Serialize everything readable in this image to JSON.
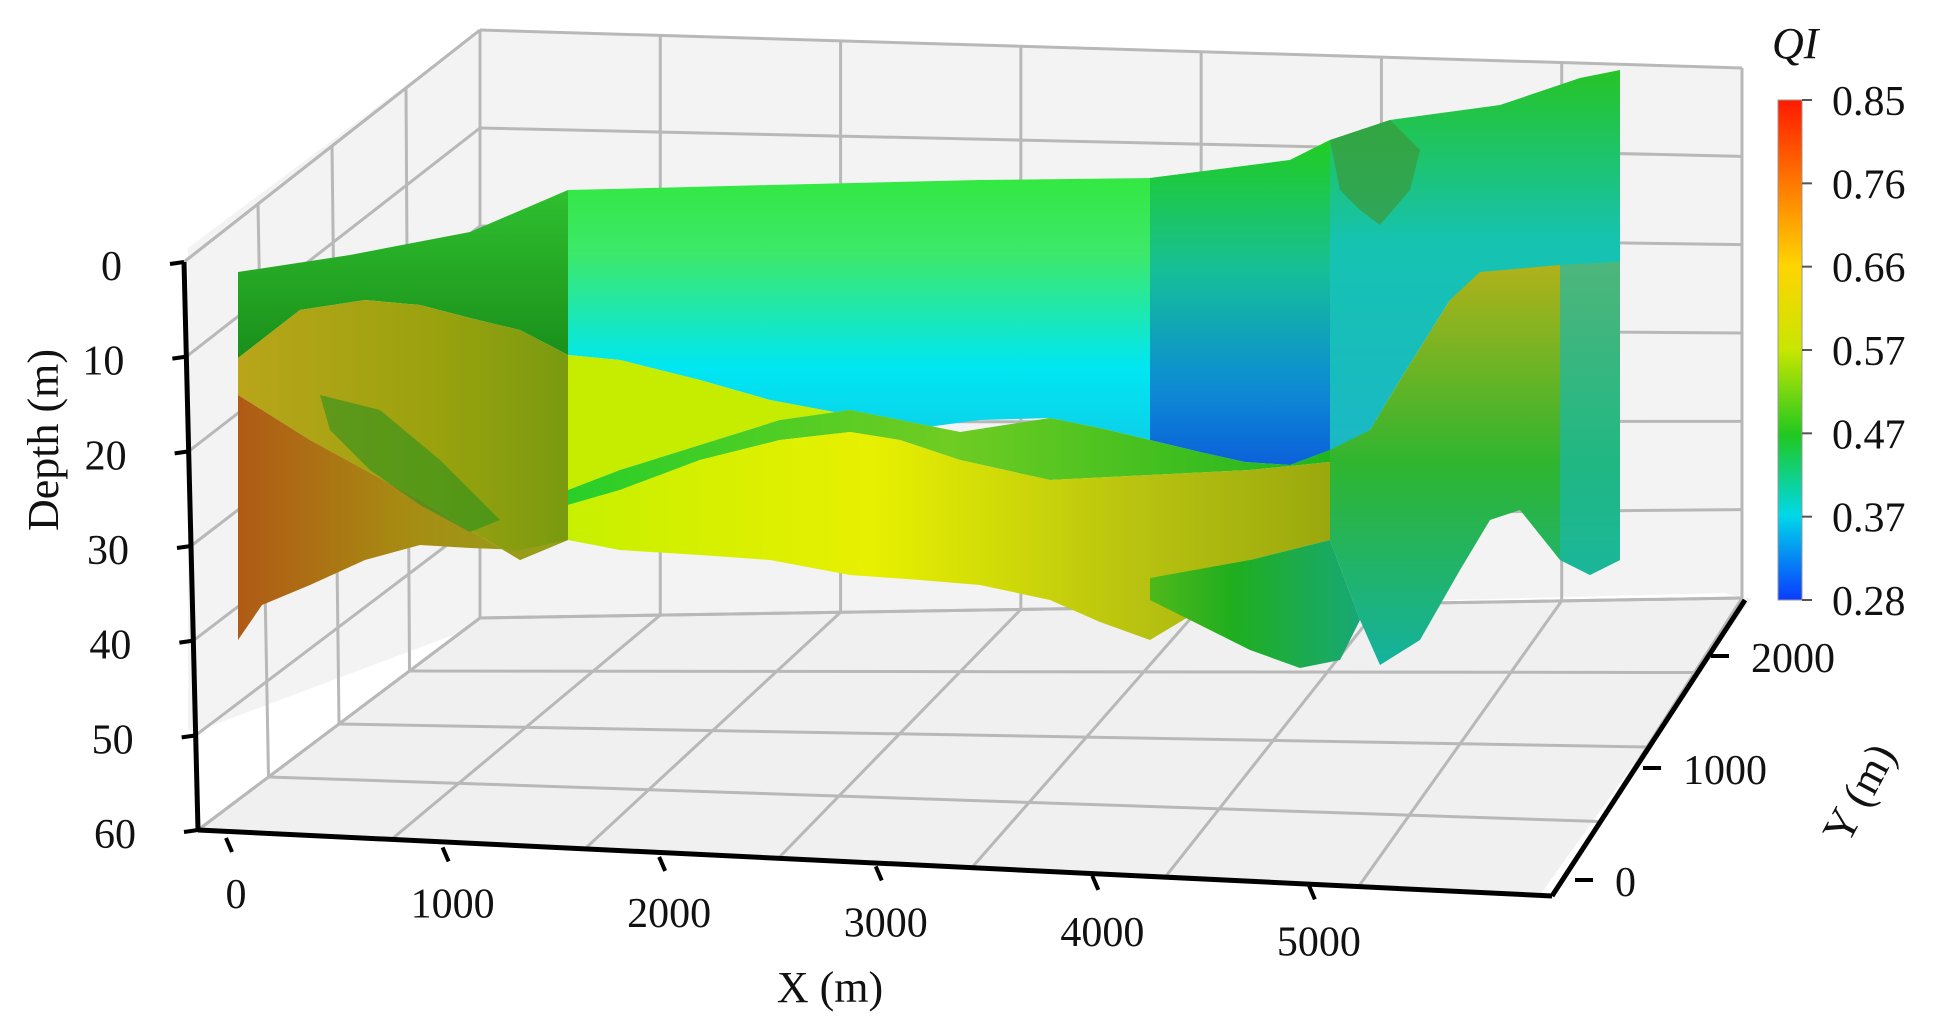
{
  "chart_data": {
    "type": "3d-surface",
    "title": "",
    "xlabel": "X (m)",
    "ylabel": "Y (m)",
    "zlabel": "Depth (m)",
    "x_ticks": [
      "0",
      "1000",
      "2000",
      "3000",
      "4000",
      "5000"
    ],
    "y_ticks": [
      "0",
      "1000",
      "2000"
    ],
    "z_ticks": [
      "0",
      "10",
      "20",
      "30",
      "40",
      "50",
      "60"
    ],
    "xlim": [
      0,
      6000
    ],
    "ylim": [
      0,
      2500
    ],
    "zlim": [
      0,
      60
    ],
    "z_inverted": true,
    "grid": true,
    "colorbar": {
      "title": "QI",
      "ticks": [
        "0.85",
        "0.76",
        "0.66",
        "0.57",
        "0.47",
        "0.37",
        "0.28"
      ],
      "range": [
        0.28,
        0.85
      ],
      "colors": [
        "#ff1a00",
        "#ff7a00",
        "#ffd400",
        "#c8e600",
        "#20c820",
        "#00d8e8",
        "#0a3cff"
      ]
    },
    "surfaces": [
      {
        "name_hidden": true,
        "depth_range_front": [
          0,
          40
        ],
        "dominant_colors": [
          "#1db51d",
          "#9fe000",
          "#00e5ff",
          "#0b5bd8",
          "#b8b000",
          "#a05a10"
        ]
      }
    ]
  }
}
